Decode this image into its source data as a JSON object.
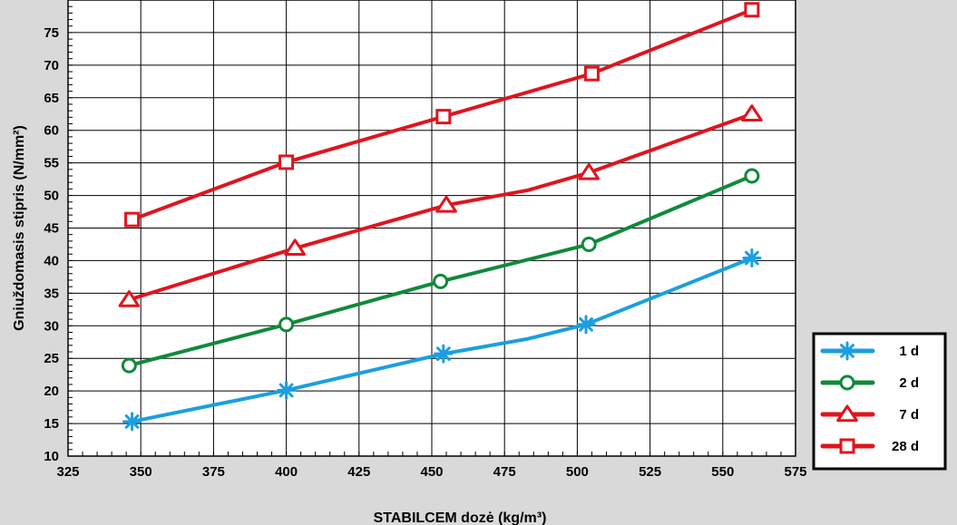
{
  "chart_data": {
    "type": "line",
    "title": "",
    "xlabel": "STABILCEM dozė (kg/m³)",
    "ylabel": "Gniuždomasis stipris (N/mm²)",
    "xlim": [
      325,
      575
    ],
    "ylim": [
      10,
      80
    ],
    "x_ticks": [
      325,
      350,
      375,
      400,
      425,
      450,
      475,
      500,
      525,
      550,
      575
    ],
    "y_ticks": [
      10,
      15,
      20,
      25,
      30,
      35,
      40,
      45,
      50,
      55,
      60,
      65,
      70,
      75
    ],
    "grid": true,
    "legend_position": "bottom-right",
    "series": [
      {
        "name": "1 d",
        "color": "#1a9fe0",
        "marker": "asterisk",
        "points": [
          [
            347,
            15.3
          ],
          [
            400,
            20.1
          ],
          [
            454,
            25.7
          ],
          [
            503,
            30.2
          ],
          [
            560,
            40.4
          ]
        ],
        "curve": [
          [
            347,
            15.3
          ],
          [
            400,
            20.1
          ],
          [
            454,
            25.7
          ],
          [
            483,
            28.0
          ],
          [
            503,
            30.2
          ],
          [
            560,
            40.4
          ]
        ]
      },
      {
        "name": "2 d",
        "color": "#0f8a3a",
        "marker": "circle",
        "points": [
          [
            346,
            23.9
          ],
          [
            400,
            30.2
          ],
          [
            453,
            36.8
          ],
          [
            504,
            42.5
          ],
          [
            560,
            53.0
          ]
        ],
        "curve": [
          [
            346,
            23.9
          ],
          [
            400,
            30.2
          ],
          [
            453,
            36.8
          ],
          [
            504,
            42.5
          ],
          [
            560,
            53.0
          ]
        ]
      },
      {
        "name": "7 d",
        "color": "#e0141e",
        "marker": "triangle",
        "points": [
          [
            346,
            34.0
          ],
          [
            403,
            41.9
          ],
          [
            455,
            48.5
          ],
          [
            504,
            53.5
          ],
          [
            560,
            62.5
          ]
        ],
        "curve": [
          [
            346,
            34.0
          ],
          [
            403,
            41.9
          ],
          [
            455,
            48.5
          ],
          [
            483,
            50.8
          ],
          [
            504,
            53.5
          ],
          [
            560,
            62.5
          ]
        ]
      },
      {
        "name": "28 d",
        "color": "#e0141e",
        "marker": "square",
        "points": [
          [
            347,
            46.3
          ],
          [
            400,
            55.1
          ],
          [
            454,
            62.1
          ],
          [
            505,
            68.7
          ],
          [
            560,
            78.5
          ]
        ],
        "curve": [
          [
            347,
            46.3
          ],
          [
            400,
            55.1
          ],
          [
            454,
            62.1
          ],
          [
            505,
            68.7
          ],
          [
            560,
            78.5
          ]
        ]
      }
    ]
  }
}
